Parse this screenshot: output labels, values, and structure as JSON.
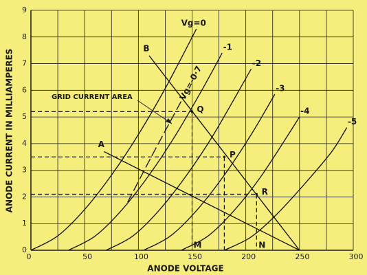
{
  "chart_data": {
    "type": "line",
    "xlabel": "ANODE VOLTAGE",
    "ylabel": "ANODE CURRENT IN MILLIAMPERES",
    "xlim": [
      0,
      300
    ],
    "ylim": [
      0,
      9
    ],
    "xticks": [
      0,
      50,
      100,
      150,
      200,
      250,
      300
    ],
    "yticks": [
      0,
      1,
      2,
      3,
      4,
      5,
      6,
      7,
      8,
      9
    ],
    "xgrid": [
      0,
      25,
      50,
      75,
      100,
      125,
      150,
      175,
      200,
      225,
      250,
      275,
      300
    ],
    "grid": true,
    "color": "#1a1a1a",
    "series": [
      {
        "name": "Vg=0",
        "style": "curve",
        "x": [
          0,
          25,
          50,
          75,
          100,
          125,
          154
        ],
        "values": [
          0,
          0.54,
          1.53,
          2.82,
          4.34,
          6.07,
          8.3
        ]
      },
      {
        "name": "-1",
        "style": "curve",
        "x": [
          35,
          60,
          85,
          110,
          135,
          160,
          178
        ],
        "values": [
          0,
          0.54,
          1.53,
          2.82,
          4.34,
          6.07,
          7.4
        ]
      },
      {
        "name": "-2",
        "style": "curve",
        "x": [
          70,
          95,
          120,
          145,
          170,
          205
        ],
        "values": [
          0,
          0.54,
          1.53,
          2.82,
          4.34,
          6.8
        ]
      },
      {
        "name": "-3",
        "style": "curve",
        "x": [
          105,
          130,
          155,
          180,
          205,
          227
        ],
        "values": [
          0,
          0.54,
          1.53,
          2.82,
          4.34,
          5.85
        ]
      },
      {
        "name": "-4",
        "style": "curve",
        "x": [
          140,
          165,
          190,
          215,
          250
        ],
        "values": [
          0,
          0.54,
          1.53,
          2.82,
          5.0
        ]
      },
      {
        "name": "-5",
        "style": "curve",
        "x": [
          180,
          205,
          230,
          255,
          280,
          294
        ],
        "values": [
          0,
          0.5,
          1.4,
          2.5,
          3.7,
          4.6
        ]
      },
      {
        "name": "Vg=-0·7",
        "style": "dashed",
        "x": [
          90,
          112,
          140
        ],
        "values": [
          1.8,
          3.5,
          5.6
        ]
      },
      {
        "name": "B",
        "style": "load",
        "x": [
          110,
          250
        ],
        "values": [
          7.3,
          0
        ]
      },
      {
        "name": "A",
        "style": "load",
        "x": [
          68,
          250
        ],
        "values": [
          3.7,
          0
        ]
      }
    ],
    "points": [
      {
        "label": "Q",
        "x": 150,
        "y": 5.2
      },
      {
        "label": "P",
        "x": 180,
        "y": 3.5
      },
      {
        "label": "R",
        "x": 210,
        "y": 2.1
      }
    ],
    "axis_markers": [
      {
        "label": "M",
        "x": 150
      },
      {
        "label": "N",
        "x": 210
      }
    ],
    "annotation": "GRID CURRENT AREA"
  }
}
